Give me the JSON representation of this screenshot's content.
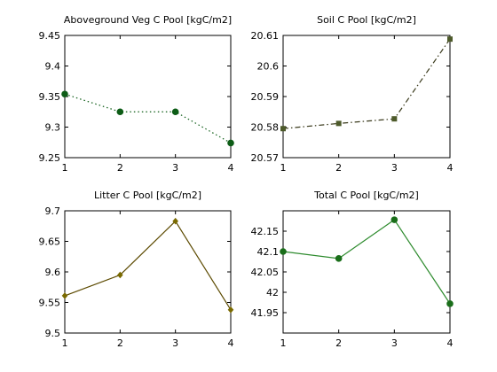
{
  "chart_data": [
    {
      "type": "line",
      "title": "Aboveground Veg C Pool [kgC/m2]",
      "x": [
        1,
        2,
        3,
        4
      ],
      "values": [
        9.354,
        9.325,
        9.325,
        9.274
      ],
      "xlim": [
        1,
        4
      ],
      "ylim": [
        9.25,
        9.45
      ],
      "xticks": [
        "1",
        "2",
        "3",
        "4"
      ],
      "yticks": [
        "9.25",
        "9.3",
        "9.35",
        "9.4",
        "9.45"
      ],
      "line_color": "#0d5c16",
      "marker_color": "#0d5c16",
      "line_style": "dotted",
      "marker": "circle",
      "grid": false
    },
    {
      "type": "line",
      "title": "Soil C Pool [kgC/m2]",
      "x": [
        1,
        2,
        3,
        4
      ],
      "values": [
        20.5795,
        20.5812,
        20.5827,
        20.6088
      ],
      "xlim": [
        1,
        4
      ],
      "ylim": [
        20.57,
        20.61
      ],
      "xticks": [
        "1",
        "2",
        "3",
        "4"
      ],
      "yticks": [
        "20.57",
        "20.58",
        "20.59",
        "20.6",
        "20.61"
      ],
      "line_color": "#3a3a1c",
      "marker_color": "#4d5a2a",
      "line_style": "dashdot",
      "marker": "square",
      "grid": false
    },
    {
      "type": "line",
      "title": "Litter C Pool [kgC/m2]",
      "x": [
        1,
        2,
        3,
        4
      ],
      "values": [
        9.561,
        9.595,
        9.683,
        9.538
      ],
      "xlim": [
        1,
        4
      ],
      "ylim": [
        9.5,
        9.7
      ],
      "xticks": [
        "1",
        "2",
        "3",
        "4"
      ],
      "yticks": [
        "9.5",
        "9.55",
        "9.6",
        "9.65",
        "9.7"
      ],
      "line_color": "#5c4a00",
      "marker_color": "#7a6a00",
      "line_style": "solid",
      "marker": "diamond",
      "grid": false
    },
    {
      "type": "line",
      "title": "Total C Pool [kgC/m2]",
      "x": [
        1,
        2,
        3,
        4
      ],
      "values": [
        42.1,
        42.083,
        42.178,
        41.972
      ],
      "xlim": [
        1,
        4
      ],
      "ylim": [
        41.9,
        42.2
      ],
      "xticks": [
        "1",
        "2",
        "3",
        "4"
      ],
      "yticks": [
        "41.95",
        "42",
        "42.05",
        "42.1",
        "42.15"
      ],
      "ytick_values": [
        41.95,
        42.0,
        42.05,
        42.1,
        42.15
      ],
      "line_color": "#2e8b2e",
      "marker_color": "#1a6e1a",
      "line_style": "solid",
      "marker": "circle",
      "grid": false
    }
  ]
}
